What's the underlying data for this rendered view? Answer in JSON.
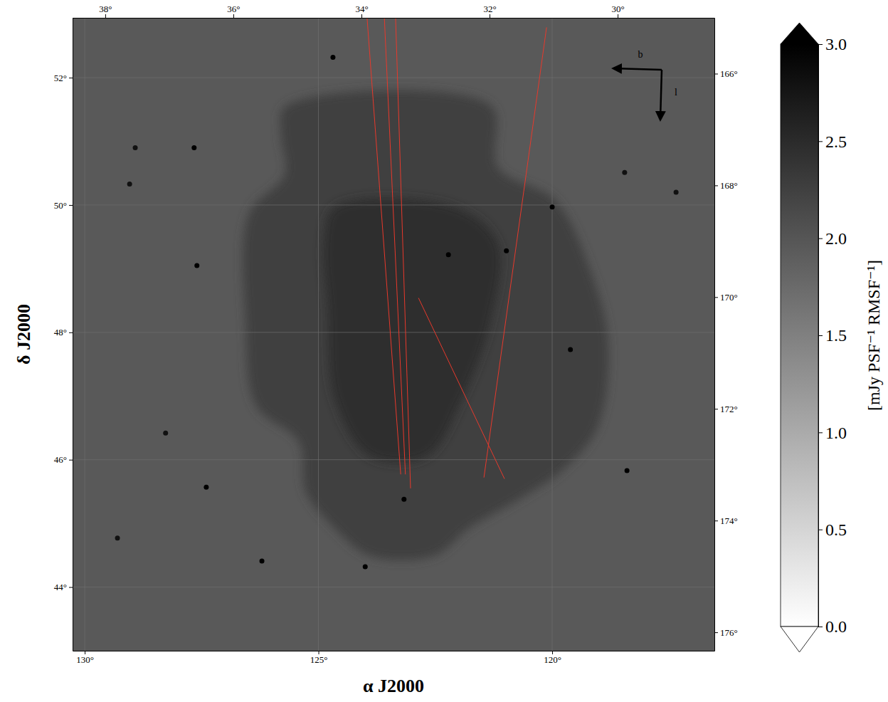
{
  "chart_data": {
    "type": "image",
    "xlabel": "α J2000",
    "ylabel": "δ J2000",
    "xlim": [
      130.26,
      116.53
    ],
    "xticks": [
      {
        "value": 130,
        "label": "130°"
      },
      {
        "value": 125,
        "label": "125°"
      },
      {
        "value": 120,
        "label": "120°"
      }
    ],
    "ylim": [
      43.0,
      52.94
    ],
    "yticks": [
      {
        "value": 44,
        "label": "44°"
      },
      {
        "value": 46,
        "label": "46°"
      },
      {
        "value": 48,
        "label": "48°"
      },
      {
        "value": 50,
        "label": "50°"
      },
      {
        "value": 52,
        "label": "52°"
      }
    ],
    "x2lim": [
      38.51,
      28.49
    ],
    "x2ticks": [
      {
        "value": 38,
        "label": "38°"
      },
      {
        "value": 36,
        "label": "36°"
      },
      {
        "value": 34,
        "label": "34°"
      },
      {
        "value": 32,
        "label": "32°"
      },
      {
        "value": 30,
        "label": "30°"
      }
    ],
    "y2lim": [
      165.0,
      176.33
    ],
    "y2ticks": [
      {
        "value": 166,
        "label": "166°"
      },
      {
        "value": 168,
        "label": "168°"
      },
      {
        "value": 170,
        "label": "170°"
      },
      {
        "value": 172,
        "label": "172°"
      },
      {
        "value": 174,
        "label": "174°"
      },
      {
        "value": 176,
        "label": "176°"
      }
    ],
    "grid": true,
    "colorbar": {
      "lim": [
        0,
        3
      ],
      "ticks": [
        {
          "value": 0,
          "label": "0.0"
        },
        {
          "value": 0.5,
          "label": "0.5"
        },
        {
          "value": 1,
          "label": "1.0"
        },
        {
          "value": 1.5,
          "label": "1.5"
        },
        {
          "value": 2,
          "label": "2.0"
        },
        {
          "value": 2.5,
          "label": "2.5"
        },
        {
          "value": 3,
          "label": "3.0"
        }
      ],
      "label": "[mJy PSF⁻¹ RMSF⁻¹]"
    },
    "background": 1.95,
    "regions": [
      {
        "value": 2.25,
        "outline": [
          [
            125.72,
            51.54
          ],
          [
            121.31,
            51.56
          ],
          [
            121.16,
            50.59
          ],
          [
            119.94,
            50.08
          ],
          [
            119.18,
            48.97
          ],
          [
            118.8,
            47.85
          ],
          [
            119.03,
            46.5
          ],
          [
            119.79,
            45.83
          ],
          [
            120.7,
            45.38
          ],
          [
            121.77,
            44.93
          ],
          [
            122.53,
            44.49
          ],
          [
            123.9,
            44.49
          ],
          [
            124.66,
            44.93
          ],
          [
            125.27,
            45.49
          ],
          [
            125.42,
            46.28
          ],
          [
            126.33,
            46.84
          ],
          [
            126.56,
            48.18
          ],
          [
            126.49,
            49.86
          ],
          [
            125.72,
            50.48
          ],
          [
            125.8,
            51.09
          ]
        ]
      },
      {
        "value": 2.45,
        "outline": [
          [
            124.66,
            49.97
          ],
          [
            122.07,
            49.97
          ],
          [
            121.16,
            49.41
          ],
          [
            121.31,
            48.18
          ],
          [
            121.92,
            46.95
          ],
          [
            122.68,
            46.05
          ],
          [
            123.9,
            46.05
          ],
          [
            124.66,
            46.95
          ],
          [
            124.81,
            48.41
          ],
          [
            124.89,
            49.41
          ]
        ]
      }
    ],
    "sources": [
      {
        "x": 124.69,
        "y": 52.32,
        "value": 3.0
      },
      {
        "x": 127.66,
        "y": 50.9,
        "value": 3.0
      },
      {
        "x": 128.92,
        "y": 50.9,
        "value": 2.8
      },
      {
        "x": 129.04,
        "y": 50.33,
        "value": 2.8
      },
      {
        "x": 127.6,
        "y": 49.05,
        "value": 3.0
      },
      {
        "x": 128.27,
        "y": 46.42,
        "value": 2.8
      },
      {
        "x": 129.3,
        "y": 44.77,
        "value": 2.8
      },
      {
        "x": 127.4,
        "y": 45.57,
        "value": 3.0
      },
      {
        "x": 126.21,
        "y": 44.41,
        "value": 3.0
      },
      {
        "x": 124.0,
        "y": 44.32,
        "value": 3.0
      },
      {
        "x": 123.17,
        "y": 45.38,
        "value": 3.0
      },
      {
        "x": 122.22,
        "y": 49.22,
        "value": 3.0
      },
      {
        "x": 120.98,
        "y": 49.28,
        "value": 3.0
      },
      {
        "x": 120.0,
        "y": 49.97,
        "value": 3.0
      },
      {
        "x": 118.45,
        "y": 50.51,
        "value": 2.8
      },
      {
        "x": 118.4,
        "y": 45.83,
        "value": 3.0
      },
      {
        "x": 117.35,
        "y": 50.2,
        "value": 2.8
      },
      {
        "x": 119.61,
        "y": 47.73,
        "value": 3.0
      }
    ],
    "lines": [
      {
        "x": [
          123.96,
          123.24
        ],
        "y": [
          52.94,
          45.77
        ],
        "color": "#e8392c"
      },
      {
        "x": [
          123.59,
          123.14
        ],
        "y": [
          52.94,
          45.77
        ],
        "color": "#e8392c"
      },
      {
        "x": [
          123.35,
          123.03
        ],
        "y": [
          52.94,
          45.55
        ],
        "color": "#e8392c"
      },
      {
        "x": [
          120.12,
          121.46
        ],
        "y": [
          52.79,
          45.72
        ],
        "color": "#e8392c"
      },
      {
        "x": [
          122.86,
          121.02
        ],
        "y": [
          48.54,
          45.7
        ],
        "color": "#e8392c"
      }
    ],
    "compass": {
      "x_label": "b",
      "y_label": "l"
    }
  }
}
